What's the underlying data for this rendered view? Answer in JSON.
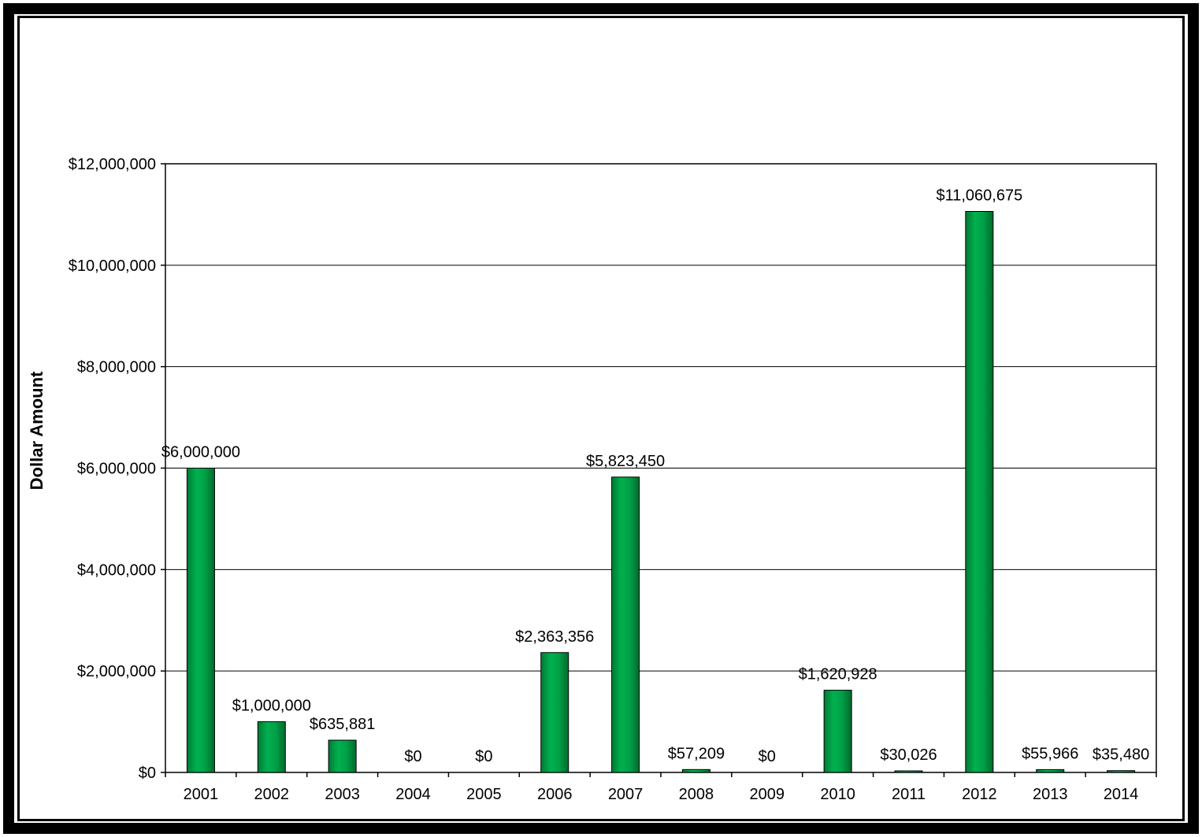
{
  "chart_data": {
    "type": "bar",
    "title": "",
    "xlabel": "",
    "ylabel": "Dollar Amount",
    "categories": [
      "2001",
      "2002",
      "2003",
      "2004",
      "2005",
      "2006",
      "2007",
      "2008",
      "2009",
      "2010",
      "2011",
      "2012",
      "2013",
      "2014"
    ],
    "values": [
      6000000,
      1000000,
      635881,
      0,
      0,
      2363356,
      5823450,
      57209,
      0,
      1620928,
      30026,
      11060675,
      55966,
      35480
    ],
    "data_labels": [
      "$6,000,000",
      "$1,000,000",
      "$635,881",
      "$0",
      "$0",
      "$2,363,356",
      "$5,823,450",
      "$57,209",
      "$0",
      "$1,620,928",
      "$30,026",
      "$11,060,675",
      "$55,966",
      "$35,480"
    ],
    "y_ticks": [
      0,
      2000000,
      4000000,
      6000000,
      8000000,
      10000000,
      12000000
    ],
    "y_tick_labels": [
      "$0",
      "$2,000,000",
      "$4,000,000",
      "$6,000,000",
      "$8,000,000",
      "$10,000,000",
      "$12,000,000"
    ],
    "ylim": [
      0,
      12000000
    ],
    "grid": true,
    "legend": "none",
    "colors": {
      "bar": "#00a046",
      "bar_edge": "#000000",
      "grid": "#000000"
    }
  }
}
